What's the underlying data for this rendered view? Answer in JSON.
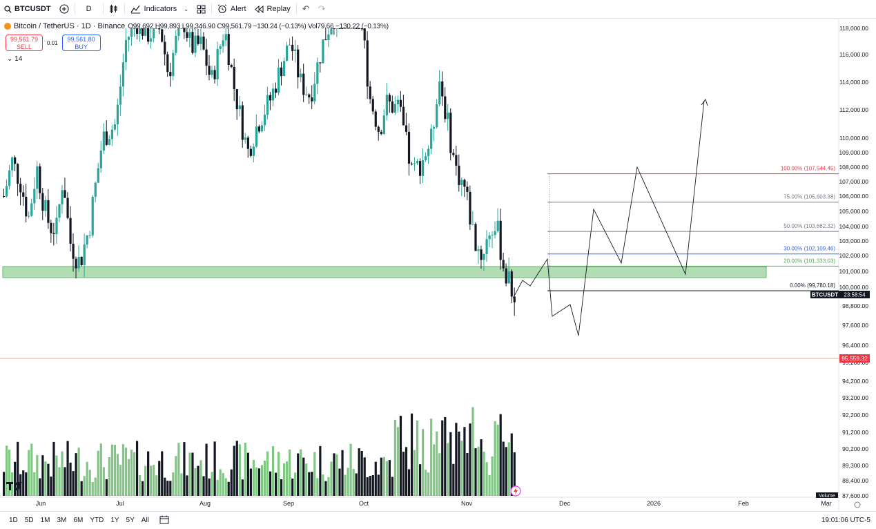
{
  "toolbar": {
    "symbol": "BTCUSDT",
    "interval": "D",
    "indicators_label": "Indicators",
    "alert_label": "Alert",
    "replay_label": "Replay"
  },
  "legend": {
    "title": "Bitcoin / TetherUS · 1D · Binance",
    "ohlc_text": "O99,692 H99,893 L99,346.90 C99,561.79 −130.24 (−0.13%) Vol79.66 −130.22 (−0.13%)",
    "sell_price": "99,561.79",
    "sell_label": "SELL",
    "spread": "0.01",
    "buy_price": "99,561.80",
    "buy_label": "BUY",
    "collapse_count": "14"
  },
  "colors": {
    "up": "#26a69a",
    "down": "#131722",
    "vol_up": "#81c784",
    "vol_down": "#131722",
    "zone": "#81c78480",
    "fib_100": "#f23645",
    "fib_30": "#2962ff",
    "fib_20": "#4caf50",
    "fib_gray": "#787b86"
  },
  "chart_data": {
    "type": "candlestick",
    "price_axis_labels": [
      "118,000.00",
      "116,000.00",
      "114,000.00",
      "112,000.00",
      "110,000.00",
      "109,000.00",
      "108,000.00",
      "107,000.00",
      "106,000.00",
      "105,000.00",
      "104,000.00",
      "103,000.00",
      "102,000.00",
      "101,000.00",
      "100,000.00",
      "98,800.00",
      "97,600.00",
      "96,400.00",
      "95,200.00",
      "94,200.00",
      "93,200.00",
      "92,200.00",
      "91,200.00",
      "90,200.00",
      "89,300.00",
      "88,400.00",
      "87,600.00"
    ],
    "time_axis_labels": [
      "Jun",
      "Jul",
      "Aug",
      "Sep",
      "Oct",
      "Nov",
      "Dec",
      "2026",
      "Feb",
      "Mar"
    ],
    "current_price_label": "BTCUSDT",
    "countdown": "23:58:54",
    "alert_price": "95,559.32",
    "volume_label": "Volume",
    "fib_levels": [
      {
        "label": "100.00% (107,544.45)",
        "price": 107544.45,
        "color": "#f23645"
      },
      {
        "label": "75.00% (105,603.38)",
        "price": 105603.38,
        "color": "#787b86"
      },
      {
        "label": "50.00% (103,662.32)",
        "price": 103662.32,
        "color": "#787b86"
      },
      {
        "label": "30.00% (102,109.46)",
        "price": 102109.46,
        "color": "#2962ff"
      },
      {
        "label": "20.00% (101,333.03)",
        "price": 101333.03,
        "color": "#4caf50"
      },
      {
        "label": "0.00% (99,780.18)",
        "price": 99780.18,
        "color": "#131722"
      }
    ],
    "support_zone": [
      100700,
      101500
    ]
  },
  "bottombar": {
    "ranges": [
      "1D",
      "5D",
      "1M",
      "3M",
      "6M",
      "YTD",
      "1Y",
      "5Y",
      "All"
    ],
    "clock": "19:01:06 UTC-5"
  }
}
